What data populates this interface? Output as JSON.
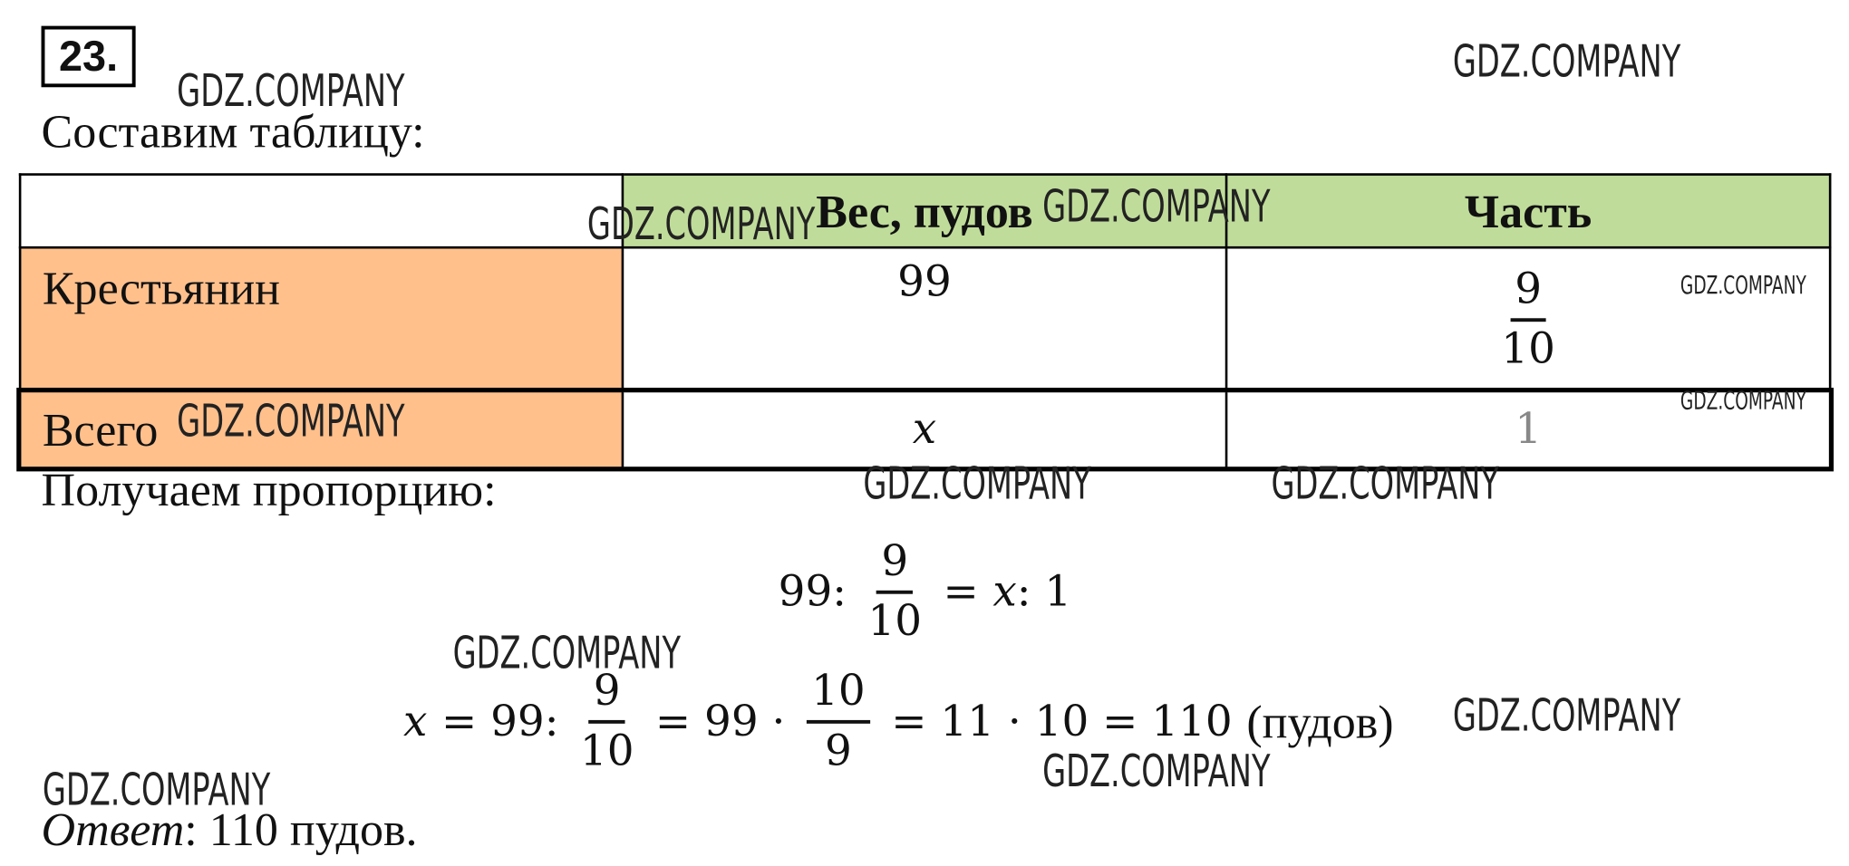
{
  "problem_number": "23.",
  "intro": "Составим таблицу:",
  "table": {
    "header": [
      "Вес, пудов",
      "Часть"
    ],
    "rows": [
      {
        "label": "Крестьянин",
        "weight": "99",
        "part": {
          "numerator": "9",
          "denominator": "10"
        }
      },
      {
        "label": "Всего",
        "weight": "x",
        "part": "1"
      }
    ]
  },
  "proportion_intro": "Получаем пропорцию:",
  "equation_1": {
    "parts": [
      "99:",
      {
        "numerator": "9",
        "denominator": "10"
      },
      "=",
      "x",
      ": 1"
    ]
  },
  "equation_2": {
    "parts": [
      "x",
      "= 99:",
      {
        "numerator": "9",
        "denominator": "10"
      },
      "= 99 ·",
      {
        "numerator": "10",
        "denominator": "9"
      },
      "= 11 · 10 = 110",
      "(пудов)"
    ]
  },
  "answer": {
    "label": "Ответ",
    "text": ": 110 пудов."
  },
  "watermarks": [
    "GDZ.COMPANY",
    "GDZ.COMPANY",
    "GDZ.COMPANY",
    "GDZ.COMPANY",
    "GDZ.COMPANY",
    "GDZ.COMPANY",
    "GDZ.COMPANY",
    "GDZ.COMPANY",
    "GDZ.COMPANY",
    "GDZ.COMPANY",
    "GDZ.COMPANY",
    "GDZ.COMPANY",
    "GDZ.COMPANY"
  ]
}
